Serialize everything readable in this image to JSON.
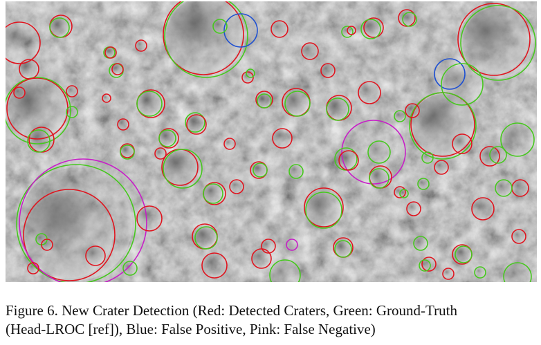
{
  "figure": {
    "caption_line1": "Figure 6.  New Crater Detection (Red: Detected Craters, Green: Ground-Truth",
    "caption_line2": "(Head-LROC [ref]), Blue: False Positive, Pink: False Negative)"
  },
  "legend_colors": {
    "detected": "#e0141e",
    "ground_truth": "#46c81e",
    "false_positive": "#1e50d2",
    "false_negative": "#c81ec8"
  }
}
